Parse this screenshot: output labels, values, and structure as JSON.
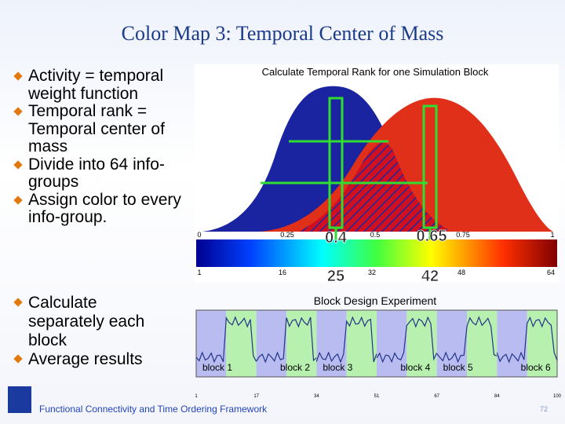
{
  "header": {
    "title": "Color Map  3: Temporal Center of Mass"
  },
  "bullets_top": [
    "Activity = temporal weight function",
    "Temporal rank = Temporal center of mass",
    "Divide into 64 info-groups",
    "Assign color to every info-group."
  ],
  "bullets_bottom": [
    "Calculate separately each block",
    "Average results"
  ],
  "figure_top": {
    "title": "Calculate Temporal Rank for one Simulation Block",
    "scale_top": [
      "0",
      "0.25",
      "0.5",
      "0.75",
      "1"
    ],
    "scale_bottom": [
      "1",
      "16",
      "32",
      "48",
      "64"
    ],
    "markers": [
      {
        "rank": "0.4",
        "group": "25"
      },
      {
        "rank": "0.65",
        "group": "42"
      }
    ]
  },
  "figure_bottom": {
    "title": "Block Design Experiment",
    "blocks": [
      "block 1",
      "block 2",
      "block 3",
      "block 4",
      "block 5",
      "block 6"
    ],
    "axis": [
      "1",
      "17",
      "34",
      "51",
      "67",
      "84",
      "100"
    ]
  },
  "footer": {
    "text": "Functional Connectivity and Time Ordering Framework",
    "page": "72"
  }
}
